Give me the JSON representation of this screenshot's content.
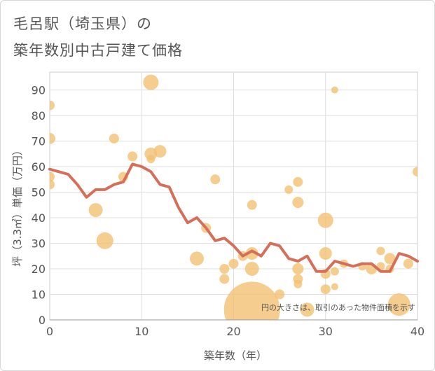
{
  "title_line1": "毛呂駅（埼玉県）の",
  "title_line2": "築年数別中古戸建て価格",
  "chart_data": {
    "type": "scatter",
    "xlabel": "築年数（年）",
    "ylabel": "坪（3.3㎡）単価（万円）",
    "xlim": [
      0,
      40
    ],
    "ylim": [
      0,
      97
    ],
    "xticks": [
      0,
      10,
      20,
      30,
      40
    ],
    "yticks": [
      0,
      10,
      20,
      30,
      40,
      50,
      60,
      70,
      80,
      90
    ],
    "grid": true,
    "annotation": "円の大きさは、取引のあった物件面積を示す",
    "colors": {
      "bubble": "#f2c072",
      "line": "#d4705a",
      "axis_text": "#555555",
      "grid": "#dddddd"
    },
    "bubbles": [
      {
        "x": 0,
        "y": 84,
        "r": 7
      },
      {
        "x": 0,
        "y": 71,
        "r": 8
      },
      {
        "x": 0,
        "y": 56,
        "r": 7
      },
      {
        "x": 0,
        "y": 53,
        "r": 7
      },
      {
        "x": 5,
        "y": 43,
        "r": 10
      },
      {
        "x": 6,
        "y": 31,
        "r": 12
      },
      {
        "x": 7,
        "y": 71,
        "r": 7
      },
      {
        "x": 8,
        "y": 56,
        "r": 7
      },
      {
        "x": 9,
        "y": 64,
        "r": 7
      },
      {
        "x": 11,
        "y": 93,
        "r": 11
      },
      {
        "x": 11,
        "y": 65,
        "r": 9
      },
      {
        "x": 11,
        "y": 63,
        "r": 6
      },
      {
        "x": 12,
        "y": 66,
        "r": 9
      },
      {
        "x": 16,
        "y": 24,
        "r": 10
      },
      {
        "x": 17,
        "y": 36,
        "r": 7
      },
      {
        "x": 18,
        "y": 55,
        "r": 7
      },
      {
        "x": 19,
        "y": 20,
        "r": 7
      },
      {
        "x": 19,
        "y": 16,
        "r": 7
      },
      {
        "x": 20,
        "y": 22,
        "r": 7
      },
      {
        "x": 21,
        "y": 25,
        "r": 7
      },
      {
        "x": 22,
        "y": 4,
        "r": 40
      },
      {
        "x": 22,
        "y": 45,
        "r": 7
      },
      {
        "x": 22,
        "y": 26,
        "r": 9
      },
      {
        "x": 22,
        "y": 20,
        "r": 10
      },
      {
        "x": 25,
        "y": 10,
        "r": 7
      },
      {
        "x": 26,
        "y": 51,
        "r": 6
      },
      {
        "x": 27,
        "y": 54,
        "r": 7
      },
      {
        "x": 27,
        "y": 46,
        "r": 8
      },
      {
        "x": 27,
        "y": 20,
        "r": 8
      },
      {
        "x": 27,
        "y": 16,
        "r": 7
      },
      {
        "x": 27,
        "y": 14,
        "r": 6
      },
      {
        "x": 28,
        "y": 4,
        "r": 10
      },
      {
        "x": 30,
        "y": 39,
        "r": 11
      },
      {
        "x": 30,
        "y": 26,
        "r": 9
      },
      {
        "x": 30,
        "y": 18,
        "r": 7
      },
      {
        "x": 30,
        "y": 12,
        "r": 7
      },
      {
        "x": 31,
        "y": 90,
        "r": 5
      },
      {
        "x": 31,
        "y": 19,
        "r": 6
      },
      {
        "x": 31,
        "y": 13,
        "r": 5
      },
      {
        "x": 32,
        "y": 22,
        "r": 6
      },
      {
        "x": 34,
        "y": 21,
        "r": 6
      },
      {
        "x": 35,
        "y": 20,
        "r": 8
      },
      {
        "x": 36,
        "y": 27,
        "r": 6
      },
      {
        "x": 36,
        "y": 21,
        "r": 6
      },
      {
        "x": 37,
        "y": 24,
        "r": 8
      },
      {
        "x": 37,
        "y": 20,
        "r": 6
      },
      {
        "x": 38,
        "y": 6,
        "r": 16
      },
      {
        "x": 39,
        "y": 22,
        "r": 7
      },
      {
        "x": 40,
        "y": 58,
        "r": 7
      }
    ],
    "trend": [
      {
        "x": 0,
        "y": 59
      },
      {
        "x": 1,
        "y": 58
      },
      {
        "x": 2,
        "y": 57
      },
      {
        "x": 3,
        "y": 53
      },
      {
        "x": 4,
        "y": 48
      },
      {
        "x": 5,
        "y": 51
      },
      {
        "x": 6,
        "y": 51
      },
      {
        "x": 7,
        "y": 53
      },
      {
        "x": 8,
        "y": 54
      },
      {
        "x": 9,
        "y": 61
      },
      {
        "x": 10,
        "y": 60
      },
      {
        "x": 11,
        "y": 58
      },
      {
        "x": 12,
        "y": 53
      },
      {
        "x": 13,
        "y": 52
      },
      {
        "x": 14,
        "y": 44
      },
      {
        "x": 15,
        "y": 38
      },
      {
        "x": 16,
        "y": 40
      },
      {
        "x": 17,
        "y": 36
      },
      {
        "x": 18,
        "y": 31
      },
      {
        "x": 19,
        "y": 32
      },
      {
        "x": 20,
        "y": 29
      },
      {
        "x": 21,
        "y": 25
      },
      {
        "x": 22,
        "y": 27
      },
      {
        "x": 23,
        "y": 25
      },
      {
        "x": 24,
        "y": 30
      },
      {
        "x": 25,
        "y": 29
      },
      {
        "x": 26,
        "y": 24
      },
      {
        "x": 27,
        "y": 23
      },
      {
        "x": 28,
        "y": 25
      },
      {
        "x": 29,
        "y": 19
      },
      {
        "x": 30,
        "y": 19
      },
      {
        "x": 31,
        "y": 23
      },
      {
        "x": 32,
        "y": 22
      },
      {
        "x": 33,
        "y": 21
      },
      {
        "x": 34,
        "y": 22
      },
      {
        "x": 35,
        "y": 22
      },
      {
        "x": 36,
        "y": 19
      },
      {
        "x": 37,
        "y": 19
      },
      {
        "x": 38,
        "y": 26
      },
      {
        "x": 39,
        "y": 25
      },
      {
        "x": 40,
        "y": 23
      }
    ]
  }
}
